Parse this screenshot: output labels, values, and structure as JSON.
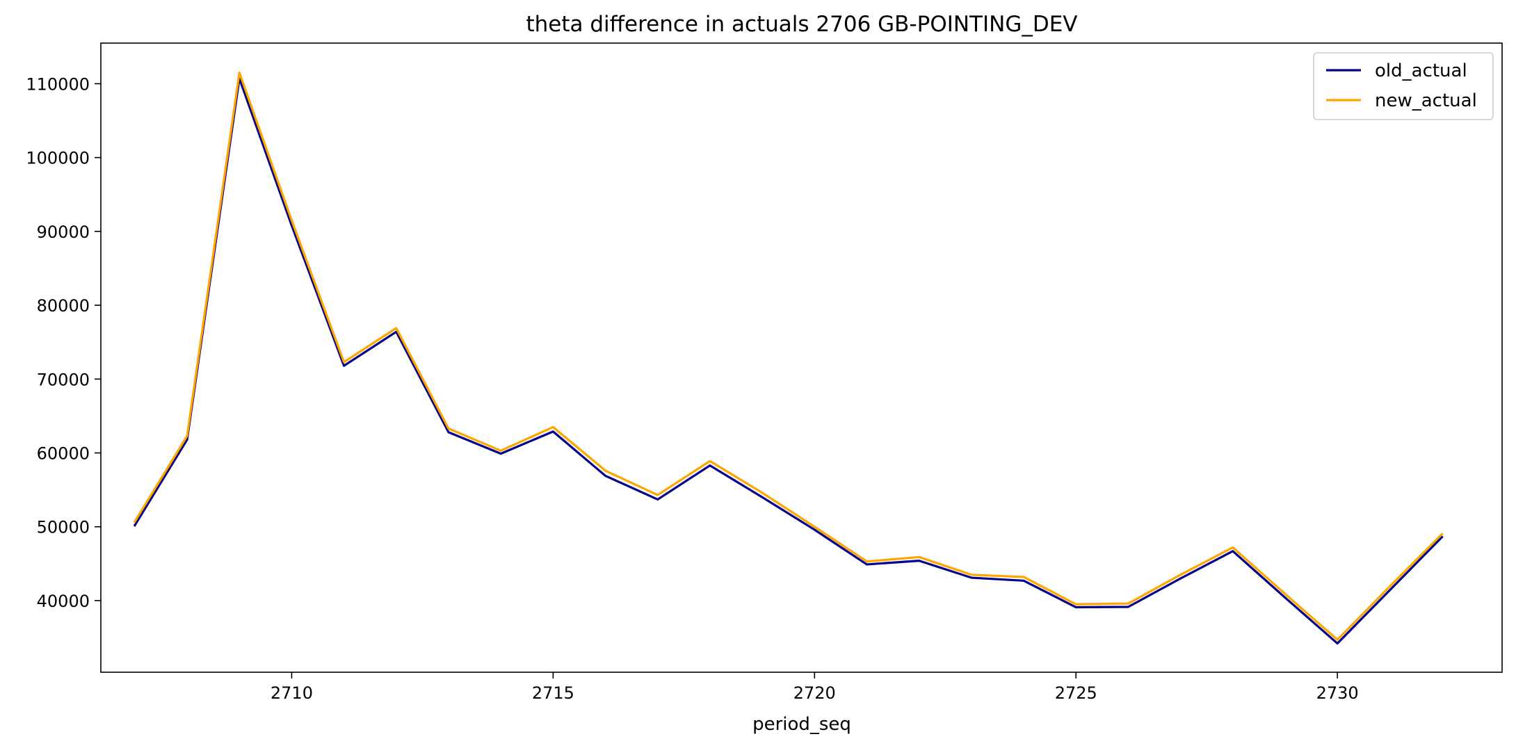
{
  "chart_data": {
    "type": "line",
    "title": "theta difference in actuals 2706 GB-POINTING_DEV",
    "xlabel": "period_seq",
    "ylabel": "",
    "x": [
      2707,
      2708,
      2709,
      2710,
      2711,
      2712,
      2713,
      2714,
      2715,
      2716,
      2717,
      2718,
      2719,
      2720,
      2721,
      2722,
      2723,
      2724,
      2725,
      2726,
      2727,
      2728,
      2729,
      2730,
      2731,
      2732
    ],
    "xlim": [
      2706.35,
      2733.15
    ],
    "ylim": [
      30300,
      115500
    ],
    "xticks": [
      2710,
      2715,
      2720,
      2725,
      2730
    ],
    "yticks": [
      40000,
      50000,
      60000,
      70000,
      80000,
      90000,
      100000,
      110000
    ],
    "grid": false,
    "legend_position": "top-right",
    "series": [
      {
        "name": "old_actual",
        "color": "#00008b",
        "values": [
          50200,
          61800,
          110700,
          90800,
          71800,
          76400,
          62800,
          59900,
          62900,
          56900,
          53700,
          58300,
          54000,
          49600,
          44900,
          45400,
          43100,
          42700,
          39100,
          39150,
          43000,
          46700,
          40400,
          34200,
          41400,
          48600
        ]
      },
      {
        "name": "new_actual",
        "color": "#ffa500",
        "values": [
          50700,
          62300,
          111500,
          91500,
          72300,
          76900,
          63300,
          60300,
          63500,
          57600,
          54300,
          58900,
          54600,
          50000,
          45300,
          45900,
          43500,
          43200,
          39500,
          39600,
          43500,
          47200,
          40900,
          34700,
          41900,
          49000
        ]
      }
    ]
  }
}
